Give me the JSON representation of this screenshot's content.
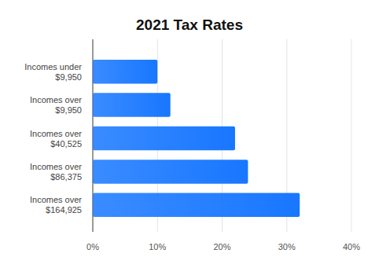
{
  "chart_data": {
    "type": "bar",
    "title": "2021 Tax Rates",
    "orientation": "horizontal",
    "categories": [
      "Incomes under $9,950",
      "Incomes over $9,950",
      "Incomes over $40,525",
      "Incomes over $86,375",
      "Incomes over $164,925"
    ],
    "values": [
      10,
      12,
      22,
      24,
      32
    ],
    "color": "#1877ff",
    "xlim": [
      0,
      40
    ],
    "xticks": [
      {
        "value": 0,
        "label": "0%"
      },
      {
        "value": 10,
        "label": "10%"
      },
      {
        "value": 20,
        "label": "20%"
      },
      {
        "value": 30,
        "label": "30%"
      },
      {
        "value": 40,
        "label": "40%"
      }
    ],
    "grid": true
  }
}
